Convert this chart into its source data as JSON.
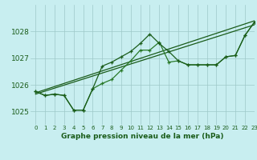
{
  "title": "Graphe pression niveau de la mer (hPa)",
  "bg_color": "#c8eef0",
  "grid_color": "#9ec8c8",
  "line_color_dark": "#1a5c1a",
  "line_color_mid": "#2a7a2a",
  "xlim": [
    -0.5,
    23
  ],
  "ylim": [
    1024.5,
    1029.0
  ],
  "yticks": [
    1025,
    1026,
    1027,
    1028
  ],
  "xticks": [
    0,
    1,
    2,
    3,
    4,
    5,
    6,
    7,
    8,
    9,
    10,
    11,
    12,
    13,
    14,
    15,
    16,
    17,
    18,
    19,
    20,
    21,
    22,
    23
  ],
  "series1_x": [
    0,
    1,
    2,
    3,
    4,
    5,
    6,
    7,
    8,
    9,
    10,
    11,
    12,
    13,
    14,
    15,
    16,
    17,
    18,
    19,
    20,
    21,
    22,
    23
  ],
  "series1_y": [
    1025.75,
    1025.6,
    1025.65,
    1025.6,
    1025.05,
    1025.05,
    1025.85,
    1026.05,
    1026.2,
    1026.55,
    1026.9,
    1027.3,
    1027.3,
    1027.6,
    1026.85,
    1026.9,
    1026.75,
    1026.75,
    1026.75,
    1026.75,
    1027.05,
    1027.1,
    1027.85,
    1028.35
  ],
  "series2_x": [
    0,
    1,
    2,
    3,
    4,
    5,
    6,
    7,
    8,
    9,
    10,
    11,
    12,
    13,
    14,
    15,
    16,
    17,
    18,
    19,
    20,
    21,
    22,
    23
  ],
  "series2_y": [
    1025.75,
    1025.6,
    1025.65,
    1025.6,
    1025.05,
    1025.05,
    1025.85,
    1026.7,
    1026.85,
    1027.05,
    1027.25,
    1027.55,
    1027.9,
    1027.55,
    1027.25,
    1026.9,
    1026.75,
    1026.75,
    1026.75,
    1026.75,
    1027.05,
    1027.1,
    1027.85,
    1028.35
  ],
  "trend1_x": [
    0,
    23
  ],
  "trend1_y": [
    1025.7,
    1028.4
  ],
  "trend2_x": [
    0,
    23
  ],
  "trend2_y": [
    1025.65,
    1028.25
  ]
}
